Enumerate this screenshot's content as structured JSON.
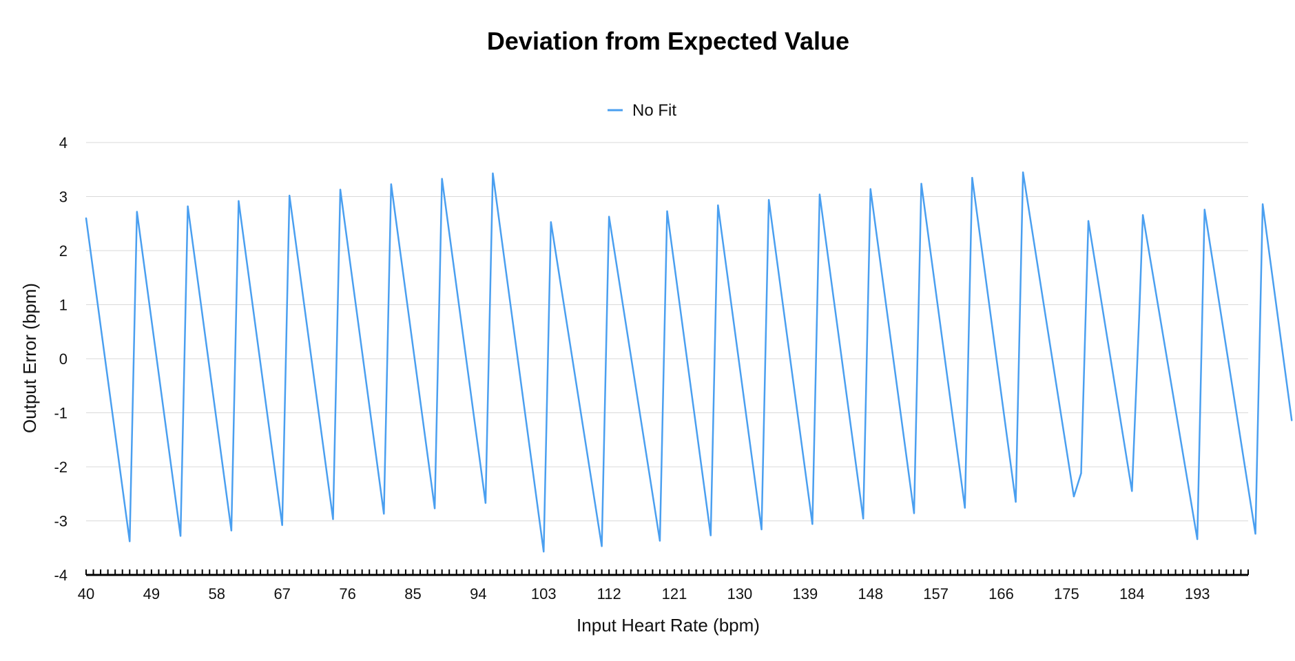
{
  "chart_data": {
    "type": "line",
    "title": "Deviation from Expected Value",
    "xlabel": "Input Heart Rate (bpm)",
    "ylabel": "Output Error (bpm)",
    "ylim": [
      -4,
      4
    ],
    "xlim": [
      40,
      200
    ],
    "y_ticks": [
      "4",
      "3",
      "2",
      "1",
      "0",
      "-1",
      "-2",
      "-3",
      "-4"
    ],
    "x_tick_labels": [
      "40",
      "49",
      "58",
      "67",
      "76",
      "85",
      "94",
      "103",
      "112",
      "121",
      "130",
      "139",
      "148",
      "157",
      "166",
      "175",
      "184",
      "193"
    ],
    "x_tick_label_values": [
      40,
      49,
      58,
      67,
      76,
      85,
      94,
      103,
      112,
      121,
      130,
      139,
      148,
      157,
      166,
      175,
      184,
      193
    ],
    "grid": true,
    "legend_position": "top-center",
    "series": [
      {
        "name": "No Fit",
        "color": "#4a9ff0",
        "points": [
          [
            40,
            2.6
          ],
          [
            46,
            -3.38
          ],
          [
            47,
            2.72
          ],
          [
            53,
            -3.28
          ],
          [
            54,
            2.82
          ],
          [
            60,
            -3.18
          ],
          [
            61,
            2.92
          ],
          [
            67,
            -3.08
          ],
          [
            68,
            3.02
          ],
          [
            74,
            -2.97
          ],
          [
            75,
            3.13
          ],
          [
            81,
            -2.87
          ],
          [
            82,
            3.23
          ],
          [
            88,
            -2.77
          ],
          [
            89,
            3.33
          ],
          [
            95,
            -2.67
          ],
          [
            96,
            3.43
          ],
          [
            103,
            -3.57
          ],
          [
            104,
            2.53
          ],
          [
            111,
            -3.47
          ],
          [
            112,
            2.63
          ],
          [
            119,
            -3.37
          ],
          [
            120,
            2.73
          ],
          [
            126,
            -3.27
          ],
          [
            127,
            2.84
          ],
          [
            133,
            -3.16
          ],
          [
            134,
            2.94
          ],
          [
            140,
            -3.06
          ],
          [
            141,
            3.04
          ],
          [
            147,
            -2.96
          ],
          [
            148,
            3.14
          ],
          [
            154,
            -2.86
          ],
          [
            155,
            3.24
          ],
          [
            161,
            -2.76
          ],
          [
            162,
            3.35
          ],
          [
            168,
            -2.65
          ],
          [
            169,
            3.45
          ],
          [
            176,
            -2.55
          ],
          [
            177,
            -2.12
          ],
          [
            178,
            2.55
          ],
          [
            184,
            -2.45
          ],
          [
            185,
            0.8
          ],
          [
            185.5,
            2.66
          ],
          [
            193,
            -3.34
          ],
          [
            194,
            2.76
          ],
          [
            201,
            -3.24
          ],
          [
            202,
            2.86
          ],
          [
            206,
            -1.14
          ]
        ]
      }
    ]
  }
}
